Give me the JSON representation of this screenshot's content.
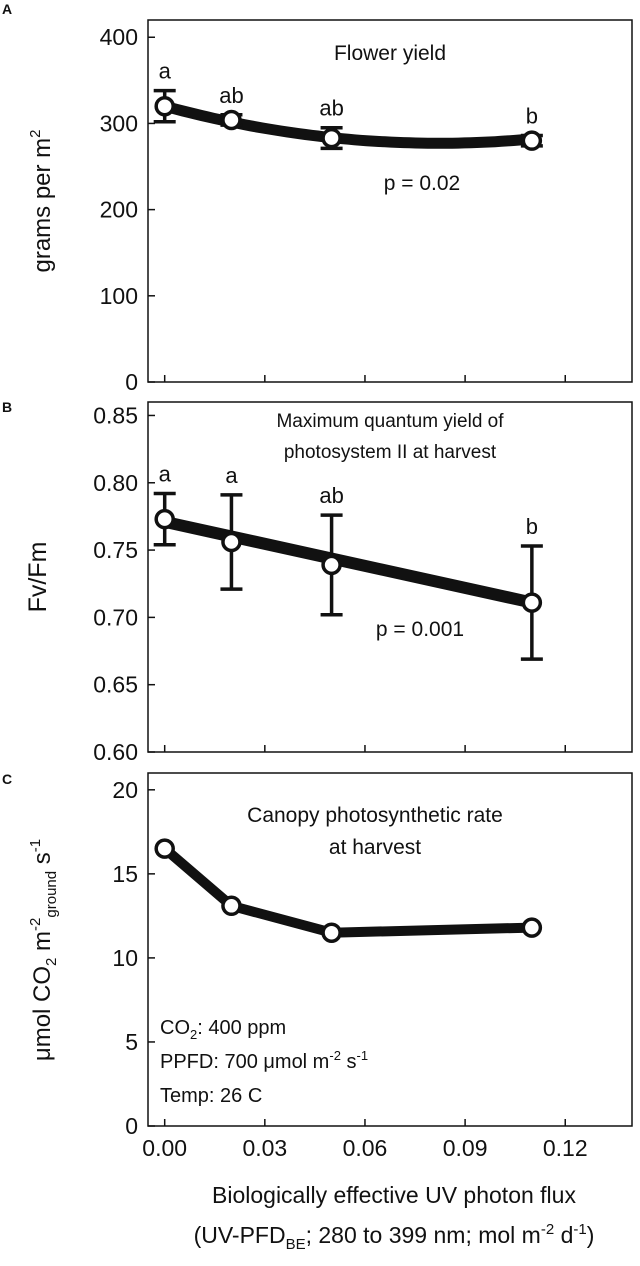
{
  "colors": {
    "ink": "#111111",
    "background": "#ffffff"
  },
  "xaxis": {
    "range": [
      -0.005,
      0.14
    ],
    "ticks": [
      0.0,
      0.03,
      0.06,
      0.09,
      0.12
    ],
    "tick_labels": [
      "0.00",
      "0.03",
      "0.06",
      "0.09",
      "0.12"
    ],
    "label_line1": "Biologically effective UV photon flux",
    "label_line2": "(UV-PFDBE; 280 to 399 nm; mol m-2 d-1)"
  },
  "chart_data": [
    {
      "type": "line",
      "panel": "A",
      "title": "Flower yield",
      "ylabel": "grams per m2",
      "ylim": [
        0,
        420
      ],
      "yticks": [
        0,
        100,
        200,
        300,
        400
      ],
      "ytick_labels": [
        "0",
        "100",
        "200",
        "300",
        "400"
      ],
      "points": {
        "x": [
          0.0,
          0.02,
          0.05,
          0.11
        ],
        "y": [
          320,
          304,
          283,
          280
        ],
        "err": [
          18,
          6,
          12,
          6
        ],
        "letters": [
          "a",
          "ab",
          "ab",
          "b"
        ]
      },
      "fit": {
        "kind": "quadratic",
        "x": [
          0.0,
          0.11
        ],
        "y_at_0": 320,
        "y_at_min": 277,
        "x_at_min": 0.082
      },
      "annotations": [
        "p = 0.02"
      ]
    },
    {
      "type": "line",
      "panel": "B",
      "title": "Maximum quantum yield of photosystem II at harvest",
      "title_line1": "Maximum quantum yield of",
      "title_line2": "photosystem II at harvest",
      "ylabel": "Fv/Fm",
      "ylim": [
        0.6,
        0.86
      ],
      "yticks": [
        0.6,
        0.65,
        0.7,
        0.75,
        0.8,
        0.85
      ],
      "ytick_labels": [
        "0.60",
        "0.65",
        "0.70",
        "0.75",
        "0.80",
        "0.85"
      ],
      "points": {
        "x": [
          0.0,
          0.02,
          0.05,
          0.11
        ],
        "y": [
          0.773,
          0.756,
          0.739,
          0.711
        ],
        "err": [
          0.019,
          0.035,
          0.037,
          0.042
        ],
        "letters": [
          "a",
          "a",
          "ab",
          "b"
        ]
      },
      "fit": {
        "kind": "linear",
        "x": [
          0.0,
          0.11
        ],
        "y": [
          0.771,
          0.711
        ]
      },
      "annotations": [
        "p = 0.001"
      ]
    },
    {
      "type": "line",
      "panel": "C",
      "title": "Canopy photosynthetic rate at harvest",
      "title_line1": "Canopy photosynthetic rate",
      "title_line2": "at harvest",
      "ylabel": "μmol CO2 m-2ground s-1",
      "ylim": [
        0,
        21
      ],
      "yticks": [
        0,
        5,
        10,
        15,
        20
      ],
      "ytick_labels": [
        "0",
        "5",
        "10",
        "15",
        "20"
      ],
      "points": {
        "x": [
          0.0,
          0.02,
          0.05,
          0.11
        ],
        "y": [
          16.5,
          13.1,
          11.5,
          11.8
        ]
      },
      "annotations": [
        "CO2: 400 ppm",
        "PPFD: 700 μmol m-2 s-1",
        "Temp: 26 C"
      ]
    }
  ],
  "panel_labels": [
    "A",
    "B",
    "C"
  ],
  "text": {
    "a_title": "Flower yield",
    "a_p": "p = 0.02",
    "a_ylabel_main": "grams per m",
    "a_ylabel_sup": "2",
    "b_title1": "Maximum quantum yield of",
    "b_title2": "photosystem II at harvest",
    "b_p": "p = 0.001",
    "b_ylabel": "Fv/Fm",
    "c_title1": "Canopy photosynthetic rate",
    "c_title2": "at harvest",
    "c_ylabel_mu": "μmol CO",
    "c_ylabel_sub2": "2",
    "c_ylabel_m": " m",
    "c_ylabel_sup_m2": "-2",
    "c_ylabel_sub_ground": "ground",
    "c_ylabel_s": " s",
    "c_ylabel_sup_s1": "-1",
    "c_note1_a": "CO",
    "c_note1_sub": "2",
    "c_note1_b": ": 400 ppm",
    "c_note2_a": "PPFD: 700 μmol m",
    "c_note2_sup1": "-2",
    "c_note2_b": " s",
    "c_note2_sup2": "-1",
    "c_note3": "Temp: 26 C",
    "xl1": "Biologically effective UV photon flux",
    "xl2_a": "(UV-PFD",
    "xl2_sub": "BE",
    "xl2_b": "; 280 to 399 nm; mol m",
    "xl2_sup1": "-2",
    "xl2_c": " d",
    "xl2_sup2": "-1",
    "xl2_d": ")"
  }
}
